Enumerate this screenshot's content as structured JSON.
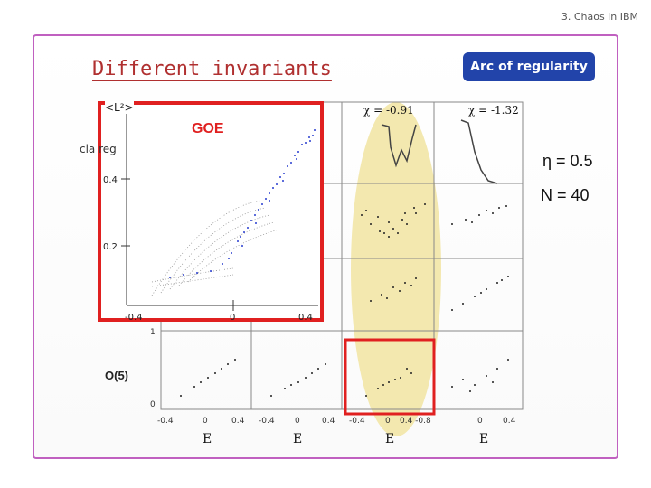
{
  "header": {
    "breadcrumb": "3. Chaos in IBM"
  },
  "slide": {
    "title": "Different invariants",
    "arc_label": "Arc of regularity",
    "eta": "η = 0.5",
    "n": "N = 40",
    "cla_text": "cla reg",
    "l2_label": "<L²>",
    "goe_label": "GOE",
    "o5_label": "O(5)"
  },
  "panels": {
    "chi_labels": [
      "χ = -0.91",
      "χ = -1.32"
    ],
    "x_ticks": [
      "-0.4",
      "0",
      "0.4",
      "-0.4",
      "0",
      "0.4",
      "-0.4",
      "0",
      "0.4 -0.8",
      "0",
      "0.4"
    ],
    "x_axis_labels": [
      "E",
      "E",
      "E",
      "E"
    ],
    "y_ticks_bottom": [
      "1",
      "0"
    ]
  },
  "inset": {
    "y_ticks": [
      "0.4",
      "0.2"
    ],
    "x_ticks": [
      "-0.4",
      "0",
      "0.4"
    ]
  },
  "colors": {
    "accent_red": "#e02020",
    "badge_blue": "#2244aa",
    "arc_yellow": "#f2e6a6",
    "frame_purple": "#c060c0",
    "dot_blue": "#2a3fd0"
  }
}
